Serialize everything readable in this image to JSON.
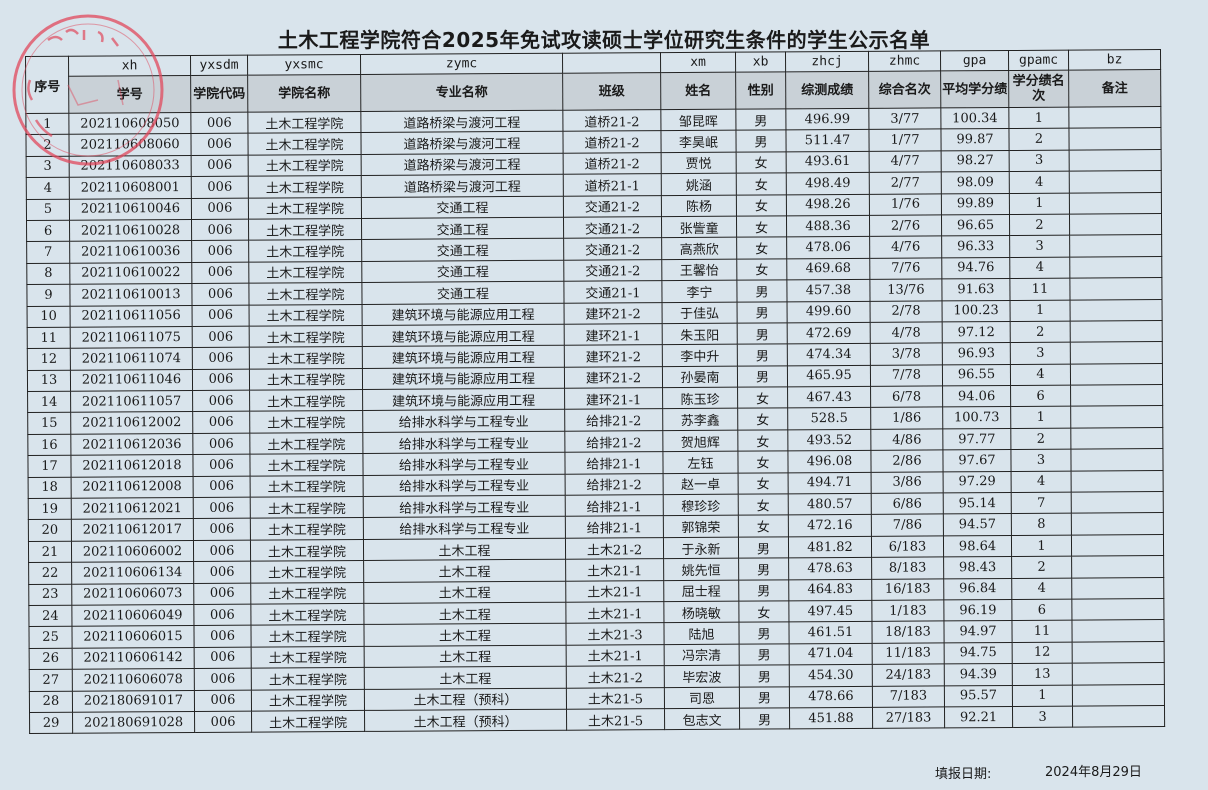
{
  "title": "土木工程学院符合2025年免试攻读硕士学位研究生条件的学生公示名单",
  "stamp": {
    "color": "#e0485c",
    "text": "内蒙古工业大学土木工程学院"
  },
  "header_codes": [
    "",
    "xh",
    "yxsdm",
    "yxsmc",
    "zymc",
    "",
    "xm",
    "xb",
    "zhcj",
    "zhmc",
    "gpa",
    "gpamc",
    "bz"
  ],
  "header_labels": [
    "序号",
    "学号",
    "学院代码",
    "学院名称",
    "专业名称",
    "班级",
    "姓名",
    "性别",
    "综测成绩",
    "综合名次",
    "平均学分绩",
    "学分绩名次",
    "备注"
  ],
  "rows": [
    [
      "1",
      "202110608050",
      "006",
      "土木工程学院",
      "道路桥梁与渡河工程",
      "道桥21-2",
      "邹昆晖",
      "男",
      "496.99",
      "3/77",
      "100.34",
      "1",
      ""
    ],
    [
      "2",
      "202110608060",
      "006",
      "土木工程学院",
      "道路桥梁与渡河工程",
      "道桥21-2",
      "李昊岷",
      "男",
      "511.47",
      "1/77",
      "99.87",
      "2",
      ""
    ],
    [
      "3",
      "202110608033",
      "006",
      "土木工程学院",
      "道路桥梁与渡河工程",
      "道桥21-2",
      "贾悦",
      "女",
      "493.61",
      "4/77",
      "98.27",
      "3",
      ""
    ],
    [
      "4",
      "202110608001",
      "006",
      "土木工程学院",
      "道路桥梁与渡河工程",
      "道桥21-1",
      "姚涵",
      "女",
      "498.49",
      "2/77",
      "98.09",
      "4",
      ""
    ],
    [
      "5",
      "202110610046",
      "006",
      "土木工程学院",
      "交通工程",
      "交通21-2",
      "陈杨",
      "女",
      "498.26",
      "1/76",
      "99.89",
      "1",
      ""
    ],
    [
      "6",
      "202110610028",
      "006",
      "土木工程学院",
      "交通工程",
      "交通21-2",
      "张訾童",
      "女",
      "488.36",
      "2/76",
      "96.65",
      "2",
      ""
    ],
    [
      "7",
      "202110610036",
      "006",
      "土木工程学院",
      "交通工程",
      "交通21-2",
      "高燕欣",
      "女",
      "478.06",
      "4/76",
      "96.33",
      "3",
      ""
    ],
    [
      "8",
      "202110610022",
      "006",
      "土木工程学院",
      "交通工程",
      "交通21-2",
      "王馨怡",
      "女",
      "469.68",
      "7/76",
      "94.76",
      "4",
      ""
    ],
    [
      "9",
      "202110610013",
      "006",
      "土木工程学院",
      "交通工程",
      "交通21-1",
      "李宁",
      "男",
      "457.38",
      "13/76",
      "91.63",
      "11",
      ""
    ],
    [
      "10",
      "202110611056",
      "006",
      "土木工程学院",
      "建筑环境与能源应用工程",
      "建环21-2",
      "于佳弘",
      "男",
      "499.60",
      "2/78",
      "100.23",
      "1",
      ""
    ],
    [
      "11",
      "202110611075",
      "006",
      "土木工程学院",
      "建筑环境与能源应用工程",
      "建环21-1",
      "朱玉阳",
      "男",
      "472.69",
      "4/78",
      "97.12",
      "2",
      ""
    ],
    [
      "12",
      "202110611074",
      "006",
      "土木工程学院",
      "建筑环境与能源应用工程",
      "建环21-2",
      "李中升",
      "男",
      "474.34",
      "3/78",
      "96.93",
      "3",
      ""
    ],
    [
      "13",
      "202110611046",
      "006",
      "土木工程学院",
      "建筑环境与能源应用工程",
      "建环21-2",
      "孙晏南",
      "男",
      "465.95",
      "7/78",
      "96.55",
      "4",
      ""
    ],
    [
      "14",
      "202110611057",
      "006",
      "土木工程学院",
      "建筑环境与能源应用工程",
      "建环21-1",
      "陈玉珍",
      "女",
      "467.43",
      "6/78",
      "94.06",
      "6",
      ""
    ],
    [
      "15",
      "202110612002",
      "006",
      "土木工程学院",
      "给排水科学与工程专业",
      "给排21-2",
      "苏李鑫",
      "女",
      "528.5",
      "1/86",
      "100.73",
      "1",
      ""
    ],
    [
      "16",
      "202110612036",
      "006",
      "土木工程学院",
      "给排水科学与工程专业",
      "给排21-2",
      "贺旭辉",
      "女",
      "493.52",
      "4/86",
      "97.77",
      "2",
      ""
    ],
    [
      "17",
      "202110612018",
      "006",
      "土木工程学院",
      "给排水科学与工程专业",
      "给排21-1",
      "左钰",
      "女",
      "496.08",
      "2/86",
      "97.67",
      "3",
      ""
    ],
    [
      "18",
      "202110612008",
      "006",
      "土木工程学院",
      "给排水科学与工程专业",
      "给排21-2",
      "赵一卓",
      "女",
      "494.71",
      "3/86",
      "97.29",
      "4",
      ""
    ],
    [
      "19",
      "202110612021",
      "006",
      "土木工程学院",
      "给排水科学与工程专业",
      "给排21-1",
      "穆珍珍",
      "女",
      "480.57",
      "6/86",
      "95.14",
      "7",
      ""
    ],
    [
      "20",
      "202110612017",
      "006",
      "土木工程学院",
      "给排水科学与工程专业",
      "给排21-1",
      "郭锦荣",
      "女",
      "472.16",
      "7/86",
      "94.57",
      "8",
      ""
    ],
    [
      "21",
      "202110606002",
      "006",
      "土木工程学院",
      "土木工程",
      "土木21-2",
      "于永新",
      "男",
      "481.82",
      "6/183",
      "98.64",
      "1",
      ""
    ],
    [
      "22",
      "202110606134",
      "006",
      "土木工程学院",
      "土木工程",
      "土木21-1",
      "姚先恒",
      "男",
      "478.63",
      "8/183",
      "98.43",
      "2",
      ""
    ],
    [
      "23",
      "202110606073",
      "006",
      "土木工程学院",
      "土木工程",
      "土木21-1",
      "屈士程",
      "男",
      "464.83",
      "16/183",
      "96.84",
      "4",
      ""
    ],
    [
      "24",
      "202110606049",
      "006",
      "土木工程学院",
      "土木工程",
      "土木21-1",
      "杨晓敏",
      "女",
      "497.45",
      "1/183",
      "96.19",
      "6",
      ""
    ],
    [
      "25",
      "202110606015",
      "006",
      "土木工程学院",
      "土木工程",
      "土木21-3",
      "陆旭",
      "男",
      "461.51",
      "18/183",
      "94.97",
      "11",
      ""
    ],
    [
      "26",
      "202110606142",
      "006",
      "土木工程学院",
      "土木工程",
      "土木21-1",
      "冯宗清",
      "男",
      "471.04",
      "11/183",
      "94.75",
      "12",
      ""
    ],
    [
      "27",
      "202110606078",
      "006",
      "土木工程学院",
      "土木工程",
      "土木21-2",
      "毕宏波",
      "男",
      "454.30",
      "24/183",
      "94.39",
      "13",
      ""
    ],
    [
      "28",
      "202180691017",
      "006",
      "土木工程学院",
      "土木工程（预科）",
      "土木21-5",
      "司恩",
      "男",
      "478.66",
      "7/183",
      "95.57",
      "1",
      ""
    ],
    [
      "29",
      "202180691028",
      "006",
      "土木工程学院",
      "土木工程（预科）",
      "土木21-5",
      "包志文",
      "男",
      "451.88",
      "27/183",
      "92.21",
      "3",
      ""
    ]
  ],
  "footer": {
    "label": "填报日期:",
    "date": "2024年8月29日"
  }
}
